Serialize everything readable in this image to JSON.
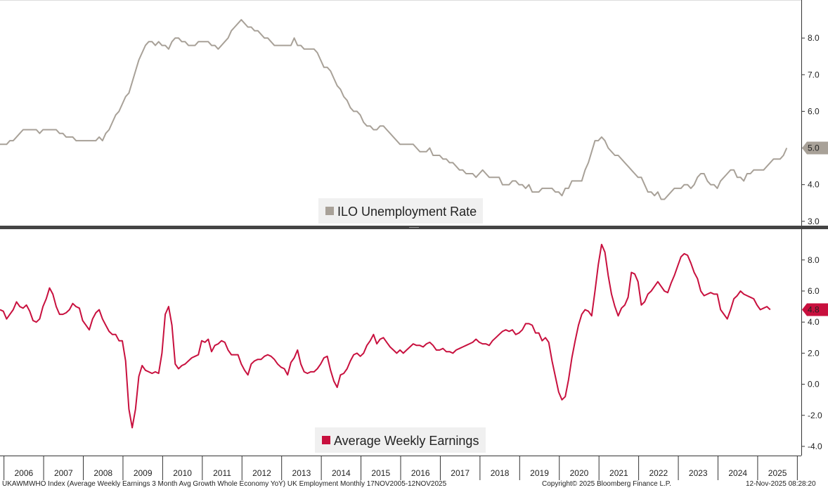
{
  "chart_data": [
    {
      "type": "line",
      "title": "ILO Unemployment Rate",
      "legend": "ILO Unemployment Rate",
      "color": "#a8a198",
      "last_value_label": "5.0",
      "ylim": [
        2.9,
        9.0
      ],
      "yticks": [
        "3.0",
        "4.0",
        "5.0",
        "6.0",
        "7.0",
        "8.0"
      ],
      "yticks_values": [
        3.0,
        4.0,
        5.0,
        6.0,
        7.0,
        8.0
      ],
      "x_start": 2005.9,
      "values": [
        5.1,
        5.1,
        5.1,
        5.2,
        5.2,
        5.3,
        5.4,
        5.5,
        5.5,
        5.5,
        5.5,
        5.5,
        5.4,
        5.5,
        5.5,
        5.5,
        5.5,
        5.5,
        5.4,
        5.4,
        5.3,
        5.3,
        5.3,
        5.2,
        5.2,
        5.2,
        5.2,
        5.2,
        5.2,
        5.2,
        5.3,
        5.2,
        5.4,
        5.5,
        5.7,
        5.9,
        6.0,
        6.2,
        6.4,
        6.5,
        6.8,
        7.1,
        7.4,
        7.6,
        7.8,
        7.9,
        7.9,
        7.8,
        7.9,
        7.8,
        7.8,
        7.7,
        7.9,
        8.0,
        8.0,
        7.9,
        7.9,
        7.8,
        7.8,
        7.8,
        7.9,
        7.9,
        7.9,
        7.9,
        7.8,
        7.8,
        7.7,
        7.8,
        7.9,
        8.0,
        8.2,
        8.3,
        8.4,
        8.5,
        8.4,
        8.3,
        8.3,
        8.2,
        8.2,
        8.1,
        8.0,
        8.0,
        7.9,
        7.8,
        7.8,
        7.8,
        7.8,
        7.8,
        7.8,
        8.0,
        7.8,
        7.8,
        7.7,
        7.7,
        7.7,
        7.7,
        7.6,
        7.4,
        7.2,
        7.2,
        7.1,
        6.9,
        6.7,
        6.6,
        6.4,
        6.3,
        6.1,
        6.0,
        6.0,
        5.9,
        5.7,
        5.6,
        5.6,
        5.5,
        5.5,
        5.6,
        5.6,
        5.5,
        5.4,
        5.3,
        5.2,
        5.1,
        5.1,
        5.1,
        5.1,
        5.1,
        5.0,
        4.9,
        4.9,
        4.9,
        5.0,
        4.8,
        4.8,
        4.8,
        4.7,
        4.7,
        4.6,
        4.6,
        4.5,
        4.4,
        4.4,
        4.3,
        4.3,
        4.3,
        4.2,
        4.3,
        4.4,
        4.3,
        4.2,
        4.2,
        4.2,
        4.2,
        4.0,
        4.0,
        4.0,
        4.1,
        4.1,
        4.0,
        4.0,
        3.9,
        4.0,
        3.8,
        3.8,
        3.8,
        3.9,
        3.9,
        3.9,
        3.9,
        3.8,
        3.8,
        3.7,
        3.9,
        3.9,
        4.1,
        4.1,
        4.1,
        4.1,
        4.4,
        4.6,
        4.9,
        5.2,
        5.2,
        5.3,
        5.2,
        5.0,
        4.9,
        4.8,
        4.8,
        4.7,
        4.6,
        4.5,
        4.4,
        4.3,
        4.2,
        4.2,
        4.0,
        3.8,
        3.8,
        3.7,
        3.8,
        3.6,
        3.6,
        3.7,
        3.8,
        3.9,
        3.9,
        3.9,
        4.0,
        4.0,
        3.9,
        4.0,
        4.2,
        4.3,
        4.3,
        4.1,
        4.0,
        4.0,
        3.9,
        4.1,
        4.2,
        4.3,
        4.4,
        4.4,
        4.2,
        4.2,
        4.1,
        4.3,
        4.3,
        4.4,
        4.4,
        4.4,
        4.4,
        4.5,
        4.6,
        4.7,
        4.7,
        4.7,
        4.8,
        5.0
      ]
    },
    {
      "type": "line",
      "title": "Average Weekly Earnings",
      "legend": "Average Weekly Earnings",
      "color": "#c8103e",
      "last_value_label": "4.8",
      "ylim": [
        -4.5,
        9.8
      ],
      "yticks": [
        "-4.0",
        "-2.0",
        "0.0",
        "2.0",
        "4.0",
        "6.0",
        "8.0"
      ],
      "yticks_values": [
        -4.0,
        -2.0,
        0.0,
        2.0,
        4.0,
        6.0,
        8.0
      ],
      "x_start": 2005.9,
      "values": [
        4.8,
        4.7,
        4.2,
        4.5,
        4.8,
        5.3,
        5.0,
        4.9,
        5.1,
        4.7,
        4.1,
        4.0,
        4.2,
        5.0,
        5.5,
        6.2,
        5.8,
        5.0,
        4.5,
        4.5,
        4.6,
        4.8,
        5.2,
        5.0,
        4.9,
        4.1,
        3.8,
        3.5,
        4.2,
        4.6,
        4.8,
        4.2,
        3.8,
        3.4,
        3.2,
        3.2,
        2.8,
        2.8,
        1.5,
        -1.6,
        -2.8,
        -1.6,
        0.5,
        1.2,
        0.9,
        0.8,
        0.7,
        0.8,
        0.7,
        2.0,
        4.5,
        5.0,
        3.8,
        1.3,
        1.0,
        1.2,
        1.3,
        1.5,
        1.7,
        1.8,
        1.9,
        2.8,
        2.7,
        2.9,
        2.1,
        2.5,
        2.6,
        2.8,
        2.7,
        2.2,
        1.9,
        1.9,
        1.9,
        1.3,
        0.9,
        0.6,
        1.3,
        1.5,
        1.6,
        1.6,
        1.8,
        1.9,
        1.8,
        1.6,
        1.3,
        1.1,
        1.0,
        0.6,
        1.4,
        1.7,
        2.2,
        1.3,
        0.8,
        0.7,
        0.8,
        0.8,
        1.0,
        1.3,
        1.7,
        1.8,
        0.9,
        0.2,
        -0.2,
        0.6,
        0.7,
        1.0,
        1.5,
        1.9,
        2.0,
        1.8,
        2.0,
        2.5,
        2.8,
        3.2,
        2.6,
        2.9,
        3.0,
        2.7,
        2.4,
        2.2,
        2.0,
        2.2,
        2.0,
        2.2,
        2.4,
        2.6,
        2.5,
        2.5,
        2.4,
        2.6,
        2.7,
        2.5,
        2.2,
        2.2,
        2.3,
        2.1,
        2.1,
        2.0,
        2.2,
        2.3,
        2.4,
        2.5,
        2.6,
        2.7,
        2.9,
        2.7,
        2.6,
        2.6,
        2.5,
        2.8,
        3.0,
        3.2,
        3.4,
        3.5,
        3.4,
        3.5,
        3.2,
        3.3,
        3.5,
        3.9,
        3.9,
        3.8,
        3.3,
        3.3,
        2.8,
        3.0,
        2.7,
        1.5,
        0.5,
        -0.5,
        -1.0,
        -0.8,
        0.3,
        1.7,
        2.8,
        3.8,
        4.5,
        4.8,
        4.7,
        4.4,
        6.0,
        7.7,
        9.0,
        8.5,
        7.0,
        5.8,
        5.0,
        4.4,
        4.9,
        5.1,
        5.6,
        7.2,
        7.1,
        6.6,
        5.1,
        5.3,
        5.8,
        6.0,
        6.3,
        6.6,
        6.3,
        6.0,
        5.9,
        6.5,
        7.0,
        7.6,
        8.2,
        8.4,
        8.3,
        7.8,
        7.2,
        6.8,
        6.0,
        5.7,
        5.8,
        5.9,
        5.8,
        5.8,
        4.8,
        4.5,
        4.2,
        4.8,
        5.5,
        5.7,
        6.0,
        5.8,
        5.7,
        5.6,
        5.5,
        5.1,
        4.8,
        4.9,
        5.0,
        4.8
      ]
    }
  ],
  "x_axis": {
    "years": [
      "2006",
      "2007",
      "2008",
      "2009",
      "2010",
      "2011",
      "2012",
      "2013",
      "2014",
      "2015",
      "2016",
      "2017",
      "2018",
      "2019",
      "2020",
      "2021",
      "2022",
      "2023",
      "2024",
      "2025"
    ]
  },
  "footer": {
    "left": "UKAWMWHO Index (Average Weekly Earnings 3 Month Avg Growth Whole Economy YoY) UK Employment Monthly 17NOV2005-12NOV2025",
    "copyright": "Copyright© 2025 Bloomberg Finance L.P.",
    "timestamp": "12-Nov-2025 08:28:20"
  }
}
